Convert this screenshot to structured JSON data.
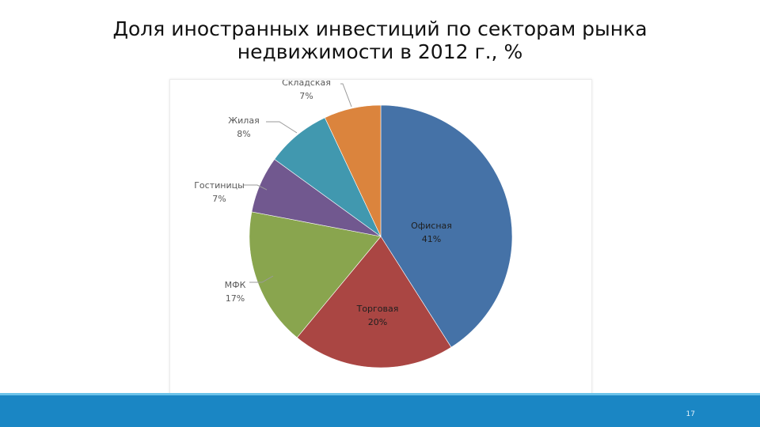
{
  "slide": {
    "title_line1": "Доля иностранных инвестиций по секторам рынка",
    "title_line2": "недвижимости в 2012 г., %",
    "page_number": "17"
  },
  "colors": {
    "footer": "#1a86c4",
    "footer_accent": "#6cc3ea"
  },
  "chart_data": {
    "type": "pie",
    "title": "",
    "slices": [
      {
        "name": "Офисная",
        "value": 41,
        "label": "41%",
        "color": "#4572a7"
      },
      {
        "name": "Торговая",
        "value": 20,
        "label": "20%",
        "color": "#aa4643"
      },
      {
        "name": "МФК",
        "value": 17,
        "label": "17%",
        "color": "#89a54e"
      },
      {
        "name": "Гостиницы",
        "value": 7,
        "label": "7%",
        "color": "#71588f"
      },
      {
        "name": "Жилая",
        "value": 8,
        "label": "8%",
        "color": "#4198af"
      },
      {
        "name": "Складская",
        "value": 7,
        "label": "7%",
        "color": "#db843d"
      }
    ],
    "start_angle_deg": 0,
    "direction": "clockwise",
    "legend": "none"
  }
}
